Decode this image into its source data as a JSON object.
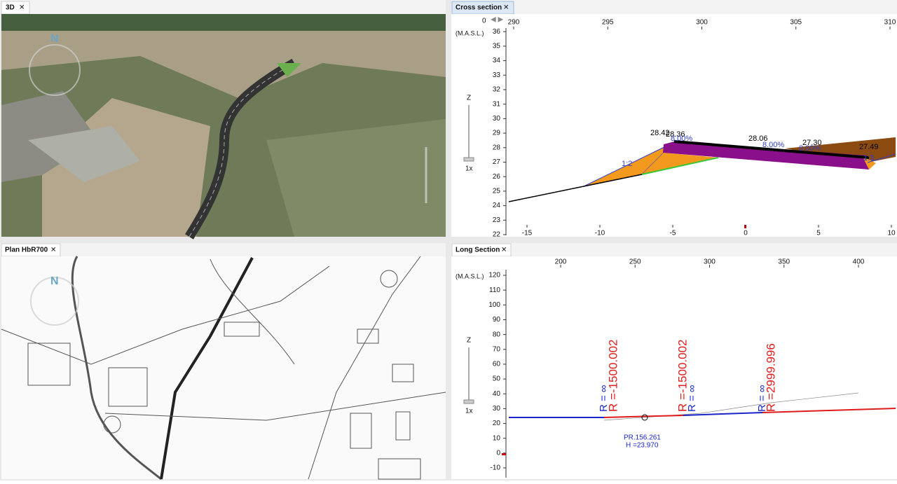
{
  "tabs": {
    "view3d": "3D",
    "cross": "Cross section",
    "plan": "Plan HbR700",
    "long": "Long Section"
  },
  "cross_section": {
    "unit": "(M.A.S.L.)",
    "zoom_axis": "Z",
    "zoom": "1x",
    "station": "0",
    "top_ticks": [
      290,
      295,
      300,
      305,
      310
    ],
    "bottom_ticks": [
      -15,
      -10,
      -5,
      0,
      5,
      10
    ],
    "y_ticks": [
      22,
      23,
      24,
      25,
      26,
      27,
      28,
      29,
      30,
      31,
      32,
      33,
      34,
      35,
      36
    ],
    "labels": [
      "28.42",
      "28.36",
      "8.00%",
      "28.06",
      "8.00%",
      "27.30",
      "8.00%",
      "27.49",
      "1:2",
      "1:3"
    ]
  },
  "long_section": {
    "unit": "(M.A.S.L.)",
    "zoom_axis": "Z",
    "zoom": "1x",
    "top_ticks": [
      200,
      250,
      300,
      350,
      400
    ],
    "y_ticks": [
      -10,
      0,
      10,
      20,
      30,
      40,
      50,
      60,
      70,
      80,
      90,
      100,
      110,
      120
    ],
    "curve_labels": [
      "R =-1500.002",
      "R = ∞",
      "R =-1500.002",
      "R = ∞",
      "R =2999.996",
      "R = ∞"
    ],
    "point": {
      "name": "PR.156.261",
      "height": "H =23.970"
    }
  }
}
